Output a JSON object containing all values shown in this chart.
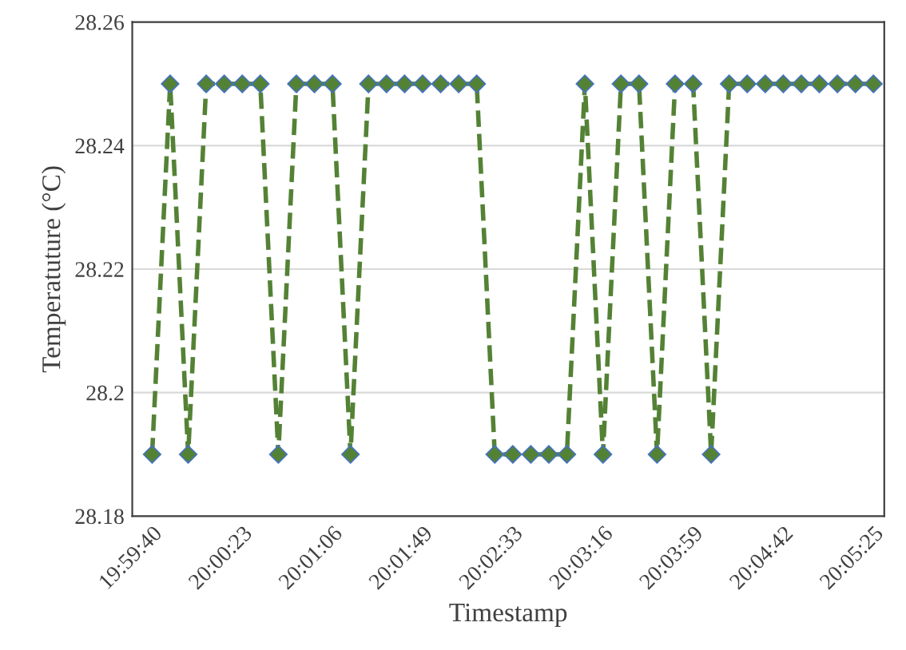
{
  "chart_data": {
    "type": "line",
    "xlabel": "Timestamp",
    "ylabel": "Temperatuture (°C)",
    "categories": [
      "19:59:40",
      null,
      null,
      null,
      null,
      "20:00:23",
      null,
      null,
      null,
      null,
      "20:01:06",
      null,
      null,
      null,
      null,
      "20:01:49",
      null,
      null,
      null,
      null,
      "20:02:33",
      null,
      null,
      null,
      null,
      "20:03:16",
      null,
      null,
      null,
      null,
      "20:03:59",
      null,
      null,
      null,
      null,
      "20:04:42",
      null,
      null,
      null,
      null,
      "20:05:25"
    ],
    "series": [
      {
        "color": "#548235",
        "values": [
          28.19,
          28.25,
          28.19,
          28.25,
          28.25,
          28.25,
          28.25,
          28.19,
          28.25,
          28.25,
          28.25,
          28.19,
          28.25,
          28.25,
          28.25,
          28.25,
          28.25,
          28.25,
          28.25,
          28.19,
          28.19,
          28.19,
          28.19,
          28.19,
          28.25,
          28.19,
          28.25,
          28.25,
          28.19,
          28.25,
          28.25,
          28.19,
          28.25,
          28.25,
          28.25,
          28.25,
          28.25,
          28.25,
          28.25,
          28.25,
          28.25
        ]
      }
    ],
    "ylim": [
      28.18,
      28.26
    ],
    "yticks": [
      28.18,
      28.2,
      28.22,
      28.24,
      28.26
    ],
    "grid": "y",
    "marker": "diamond",
    "line_style": "dashed"
  }
}
